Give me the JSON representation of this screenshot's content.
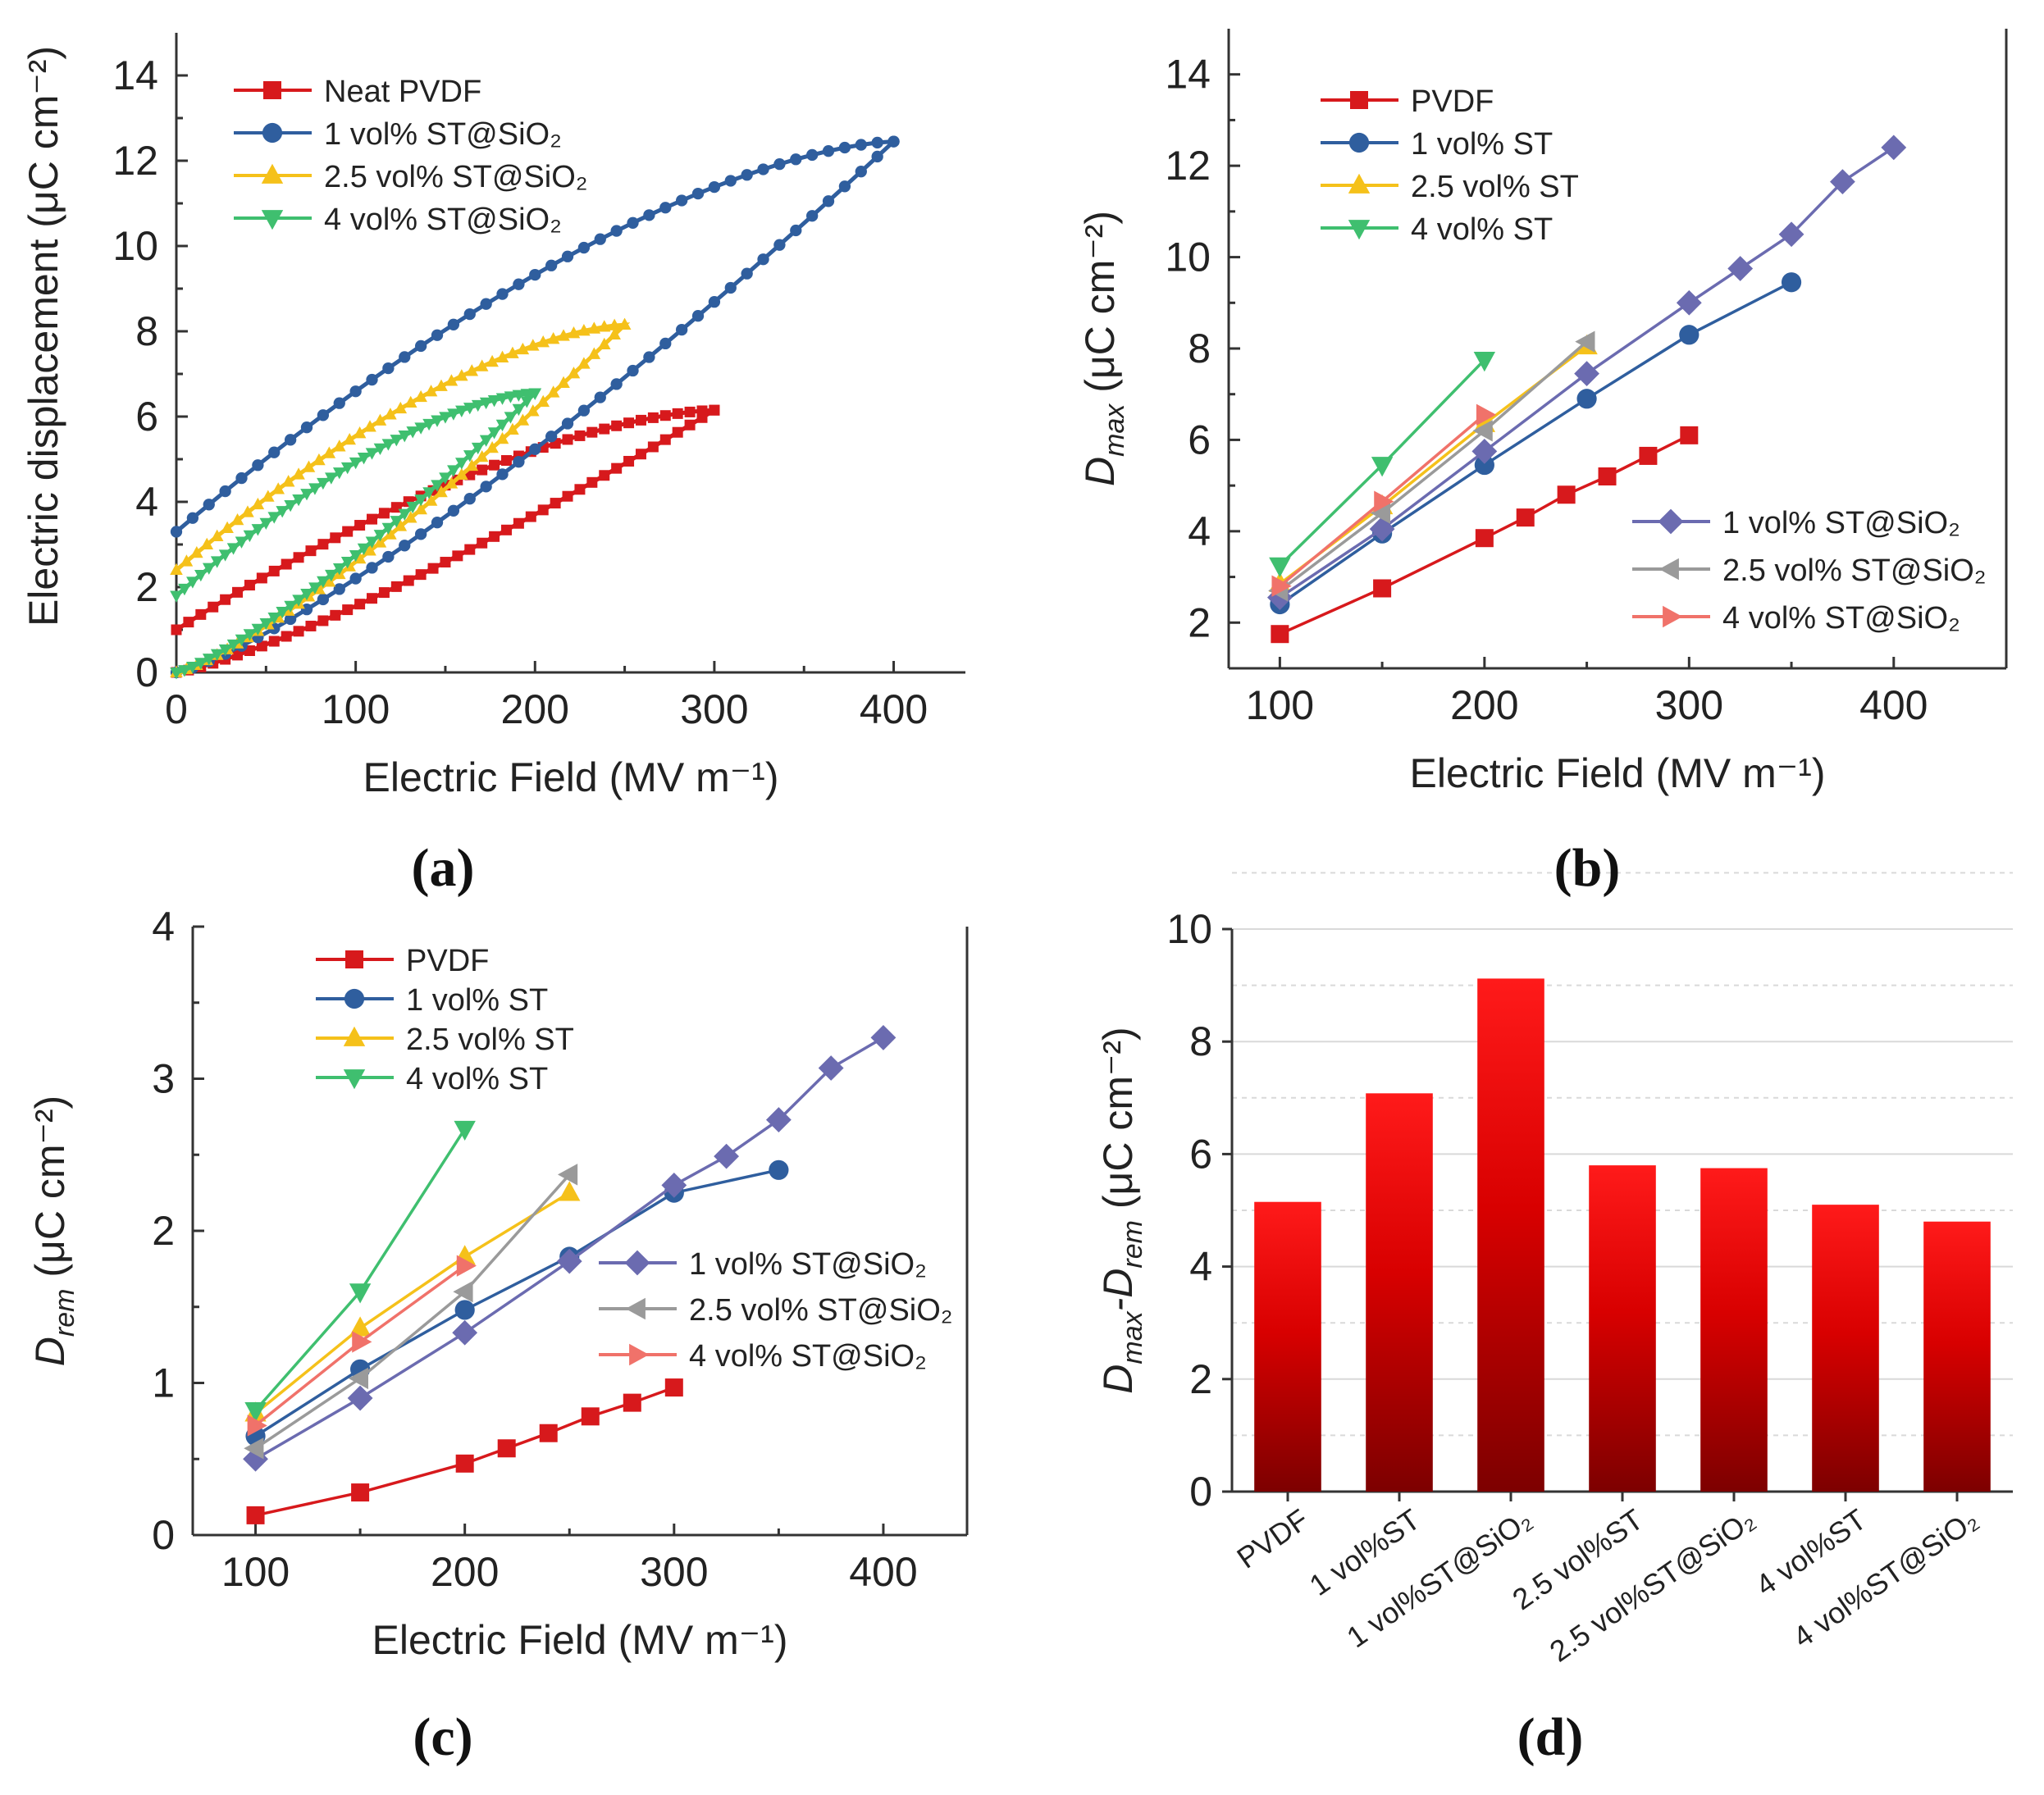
{
  "figure": {
    "panel_labels": [
      "(a)",
      "(b)",
      "(c)",
      "(d)"
    ]
  },
  "colors": {
    "red": "#d7191c",
    "blue": "#2f5e9e",
    "yellow": "#f5c11a",
    "green": "#3fbf6f",
    "purple": "#6b6bb0",
    "gray": "#9a9a9a",
    "salmon": "#f0726a",
    "bar_top": "#ff1a1a",
    "bar_bottom": "#7d0000"
  },
  "chart_data": [
    {
      "id": "a",
      "type": "line",
      "title": "",
      "xlabel": "Electric Field (MV m⁻¹)",
      "ylabel": "Electric displacement (μC cm⁻²)",
      "xlim": [
        0,
        440
      ],
      "ylim": [
        0,
        15
      ],
      "xticks": [
        0,
        100,
        200,
        300,
        400
      ],
      "yticks": [
        0,
        2,
        4,
        6,
        8,
        10,
        12,
        14
      ],
      "legend_position": "top-left",
      "series": [
        {
          "name": "Neat PVDF",
          "color_key": "red",
          "marker": "square",
          "emax": 300,
          "dmax": 6.15,
          "drem": 1.0
        },
        {
          "name": "1 vol% ST@SiO₂",
          "color_key": "blue",
          "marker": "circle",
          "emax": 400,
          "dmax": 12.45,
          "drem": 3.3
        },
        {
          "name": "2.5 vol% ST@SiO₂",
          "color_key": "yellow",
          "marker": "triangle-up",
          "emax": 250,
          "dmax": 8.15,
          "drem": 2.4
        },
        {
          "name": "4 vol% ST@SiO₂",
          "color_key": "green",
          "marker": "triangle-down",
          "emax": 200,
          "dmax": 6.55,
          "drem": 1.8
        }
      ]
    },
    {
      "id": "b",
      "type": "line",
      "title": "",
      "xlabel": "Electric Field (MV m⁻¹)",
      "ylabel": "D",
      "ylabel_sub": "max",
      "ylabel_unit": "(μC cm⁻²)",
      "xlim": [
        75,
        455
      ],
      "ylim": [
        1,
        15
      ],
      "xticks": [
        100,
        200,
        300,
        400
      ],
      "yticks": [
        2,
        4,
        6,
        8,
        10,
        12,
        14
      ],
      "legend_position": "top-left and bottom-right",
      "series": [
        {
          "name": "PVDF",
          "color_key": "red",
          "marker": "square",
          "x": [
            100,
            150,
            200,
            220,
            240,
            260,
            280,
            300
          ],
          "y": [
            1.75,
            2.75,
            3.85,
            4.3,
            4.8,
            5.2,
            5.65,
            6.1
          ]
        },
        {
          "name": "1 vol% ST",
          "color_key": "blue",
          "marker": "circle",
          "x": [
            100,
            150,
            200,
            250,
            300,
            350
          ],
          "y": [
            2.4,
            3.95,
            5.45,
            6.9,
            8.3,
            9.45
          ]
        },
        {
          "name": "2.5 vol% ST",
          "color_key": "yellow",
          "marker": "triangle-up",
          "x": [
            100,
            150,
            200,
            250
          ],
          "y": [
            2.85,
            4.55,
            6.35,
            8.05
          ]
        },
        {
          "name": "4 vol% ST",
          "color_key": "green",
          "marker": "triangle-down",
          "x": [
            100,
            150,
            200
          ],
          "y": [
            3.25,
            5.45,
            7.75
          ]
        },
        {
          "name": "1 vol% ST@SiO₂",
          "color_key": "purple",
          "marker": "diamond",
          "x": [
            100,
            150,
            200,
            250,
            300,
            325,
            350,
            375,
            400
          ],
          "y": [
            2.55,
            4.05,
            5.75,
            7.45,
            9.0,
            9.75,
            10.5,
            11.65,
            12.4
          ]
        },
        {
          "name": "2.5 vol% ST@SiO₂",
          "color_key": "gray",
          "marker": "triangle-left",
          "x": [
            100,
            150,
            200,
            250
          ],
          "y": [
            2.7,
            4.4,
            6.2,
            8.15
          ]
        },
        {
          "name": "4 vol% ST@SiO₂",
          "color_key": "salmon",
          "marker": "triangle-right",
          "x": [
            100,
            150,
            200
          ],
          "y": [
            2.8,
            4.65,
            6.55
          ]
        }
      ]
    },
    {
      "id": "c",
      "type": "line",
      "title": "",
      "xlabel": "Electric Field (MV m⁻¹)",
      "ylabel": "D",
      "ylabel_sub": "rem",
      "ylabel_unit": "(μC cm⁻²)",
      "xlim": [
        70,
        440
      ],
      "ylim": [
        0,
        4
      ],
      "xticks": [
        100,
        200,
        300,
        400
      ],
      "yticks": [
        0,
        1,
        2,
        3,
        4
      ],
      "legend_position": "top-left and middle-right",
      "series": [
        {
          "name": "PVDF",
          "color_key": "red",
          "marker": "square",
          "x": [
            100,
            150,
            200,
            220,
            240,
            260,
            280,
            300
          ],
          "y": [
            0.13,
            0.28,
            0.47,
            0.57,
            0.67,
            0.78,
            0.87,
            0.97
          ]
        },
        {
          "name": "1 vol% ST",
          "color_key": "blue",
          "marker": "circle",
          "x": [
            100,
            150,
            200,
            250,
            300,
            350
          ],
          "y": [
            0.65,
            1.09,
            1.48,
            1.83,
            2.25,
            2.4
          ]
        },
        {
          "name": "2.5 vol% ST",
          "color_key": "yellow",
          "marker": "triangle-up",
          "x": [
            100,
            150,
            200,
            250
          ],
          "y": [
            0.8,
            1.36,
            1.83,
            2.25
          ]
        },
        {
          "name": "4 vol% ST",
          "color_key": "green",
          "marker": "triangle-down",
          "x": [
            100,
            150,
            200
          ],
          "y": [
            0.82,
            1.6,
            2.67
          ]
        },
        {
          "name": "1 vol% ST@SiO₂",
          "color_key": "purple",
          "marker": "diamond",
          "x": [
            100,
            150,
            200,
            250,
            300,
            325,
            350,
            375,
            400
          ],
          "y": [
            0.5,
            0.9,
            1.33,
            1.8,
            2.3,
            2.49,
            2.73,
            3.07,
            3.27
          ]
        },
        {
          "name": "2.5 vol% ST@SiO₂",
          "color_key": "gray",
          "marker": "triangle-left",
          "x": [
            100,
            150,
            200,
            250
          ],
          "y": [
            0.57,
            1.03,
            1.6,
            2.37
          ]
        },
        {
          "name": "4 vol% ST@SiO₂",
          "color_key": "salmon",
          "marker": "triangle-right",
          "x": [
            100,
            150,
            200
          ],
          "y": [
            0.72,
            1.27,
            1.77
          ]
        }
      ]
    },
    {
      "id": "d",
      "type": "bar",
      "title": "",
      "xlabel": "",
      "ylabel": "D",
      "ylabel_sub": "max",
      "ylabel_mid": "-D",
      "ylabel_sub2": "rem",
      "ylabel_unit": "(μC cm⁻²)",
      "ylim": [
        0,
        10
      ],
      "yticks": [
        0,
        2,
        4,
        6,
        8,
        10
      ],
      "grid": true,
      "categories": [
        "PVDF",
        "1 vol%ST",
        "1 vol%ST@SiO₂",
        "2.5 vol%ST",
        "2.5 vol%ST@SiO₂",
        "4 vol%ST",
        "4 vol%ST@SiO₂"
      ],
      "values": [
        5.15,
        7.08,
        9.12,
        5.8,
        5.75,
        5.1,
        4.8
      ]
    }
  ]
}
